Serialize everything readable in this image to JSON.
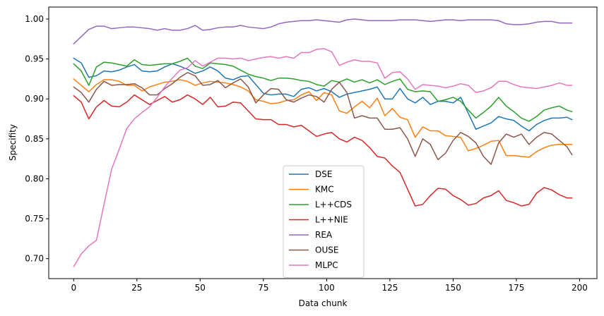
{
  "chart_data": {
    "type": "line",
    "xlabel": "Data chunk",
    "ylabel": "Specifity",
    "xlim": [
      -9.85,
      206.85
    ],
    "ylim": [
      0.675,
      1.015
    ],
    "xticks": [
      0,
      25,
      50,
      75,
      100,
      125,
      150,
      175,
      200
    ],
    "yticks": [
      0.7,
      0.75,
      0.8,
      0.85,
      0.9,
      0.95,
      1.0
    ],
    "ytick_labels": [
      "0.70",
      "0.75",
      "0.80",
      "0.85",
      "0.90",
      "0.95",
      "1.00"
    ],
    "grid": false,
    "legend_position": "lower center",
    "x": [
      0,
      3,
      6,
      9,
      12,
      15,
      18,
      21,
      24,
      27,
      30,
      33,
      36,
      39,
      42,
      45,
      48,
      51,
      54,
      57,
      60,
      63,
      66,
      69,
      72,
      75,
      78,
      81,
      84,
      87,
      90,
      93,
      96,
      99,
      102,
      105,
      108,
      111,
      114,
      117,
      120,
      123,
      126,
      129,
      132,
      135,
      138,
      141,
      144,
      147,
      150,
      153,
      156,
      159,
      162,
      165,
      168,
      171,
      174,
      177,
      180,
      183,
      186,
      189,
      192,
      195,
      197
    ],
    "series": [
      {
        "name": "DSE",
        "color": "#1f77b4",
        "values": [
          0.951,
          0.945,
          0.927,
          0.929,
          0.935,
          0.934,
          0.936,
          0.94,
          0.943,
          0.935,
          0.934,
          0.935,
          0.94,
          0.944,
          0.941,
          0.937,
          0.932,
          0.935,
          0.94,
          0.935,
          0.926,
          0.924,
          0.928,
          0.929,
          0.918,
          0.907,
          0.905,
          0.906,
          0.906,
          0.903,
          0.912,
          0.914,
          0.91,
          0.913,
          0.909,
          0.902,
          0.906,
          0.908,
          0.91,
          0.912,
          0.915,
          0.9,
          0.9,
          0.913,
          0.9,
          0.895,
          0.902,
          0.893,
          0.897,
          0.897,
          0.895,
          0.902,
          0.882,
          0.862,
          0.866,
          0.87,
          0.878,
          0.875,
          0.873,
          0.866,
          0.86,
          0.868,
          0.873,
          0.876,
          0.876,
          0.877,
          0.874
        ]
      },
      {
        "name": "KMC",
        "color": "#ff7f0e",
        "values": [
          0.925,
          0.917,
          0.909,
          0.918,
          0.924,
          0.924,
          0.922,
          0.917,
          0.917,
          0.91,
          0.915,
          0.918,
          0.921,
          0.922,
          0.924,
          0.922,
          0.917,
          0.92,
          0.922,
          0.921,
          0.92,
          0.918,
          0.915,
          0.91,
          0.899,
          0.897,
          0.894,
          0.895,
          0.898,
          0.899,
          0.905,
          0.909,
          0.898,
          0.908,
          0.905,
          0.885,
          0.882,
          0.89,
          0.897,
          0.889,
          0.901,
          0.879,
          0.888,
          0.877,
          0.874,
          0.852,
          0.865,
          0.86,
          0.86,
          0.854,
          0.853,
          0.852,
          0.835,
          0.838,
          0.842,
          0.847,
          0.848,
          0.829,
          0.829,
          0.828,
          0.827,
          0.834,
          0.839,
          0.842,
          0.843,
          0.843,
          0.843
        ]
      },
      {
        "name": "L++CDS",
        "color": "#2ca02c",
        "values": [
          0.944,
          0.935,
          0.917,
          0.94,
          0.946,
          0.945,
          0.943,
          0.941,
          0.949,
          0.943,
          0.942,
          0.943,
          0.944,
          0.944,
          0.947,
          0.951,
          0.941,
          0.938,
          0.945,
          0.944,
          0.943,
          0.941,
          0.936,
          0.931,
          0.928,
          0.926,
          0.923,
          0.926,
          0.926,
          0.925,
          0.923,
          0.922,
          0.918,
          0.916,
          0.923,
          0.921,
          0.925,
          0.921,
          0.924,
          0.92,
          0.924,
          0.918,
          0.922,
          0.925,
          0.912,
          0.909,
          0.91,
          0.909,
          0.897,
          0.899,
          0.902,
          0.897,
          0.886,
          0.876,
          0.883,
          0.891,
          0.902,
          0.891,
          0.884,
          0.876,
          0.872,
          0.878,
          0.886,
          0.889,
          0.891,
          0.886,
          0.884
        ]
      },
      {
        "name": "L++NIE",
        "color": "#d62728",
        "values": [
          0.904,
          0.896,
          0.875,
          0.89,
          0.898,
          0.891,
          0.89,
          0.896,
          0.905,
          0.899,
          0.893,
          0.898,
          0.903,
          0.896,
          0.899,
          0.905,
          0.9,
          0.893,
          0.902,
          0.89,
          0.891,
          0.896,
          0.895,
          0.885,
          0.875,
          0.874,
          0.874,
          0.868,
          0.868,
          0.865,
          0.867,
          0.86,
          0.853,
          0.856,
          0.858,
          0.85,
          0.846,
          0.852,
          0.848,
          0.839,
          0.828,
          0.826,
          0.816,
          0.808,
          0.787,
          0.766,
          0.768,
          0.779,
          0.788,
          0.787,
          0.779,
          0.774,
          0.767,
          0.769,
          0.776,
          0.779,
          0.785,
          0.773,
          0.77,
          0.766,
          0.768,
          0.782,
          0.789,
          0.786,
          0.78,
          0.776,
          0.776
        ]
      },
      {
        "name": "REA",
        "color": "#9467bd",
        "values": [
          0.969,
          0.978,
          0.987,
          0.991,
          0.991,
          0.988,
          0.989,
          0.99,
          0.99,
          0.989,
          0.988,
          0.986,
          0.988,
          0.986,
          0.986,
          0.988,
          0.992,
          0.986,
          0.987,
          0.989,
          0.99,
          0.99,
          0.992,
          0.99,
          0.989,
          0.988,
          0.99,
          0.994,
          0.996,
          0.997,
          0.998,
          0.998,
          0.999,
          0.998,
          0.997,
          0.996,
          0.999,
          1.0,
          0.999,
          0.998,
          0.998,
          0.998,
          0.998,
          0.999,
          0.999,
          0.999,
          0.998,
          0.997,
          0.998,
          0.999,
          0.999,
          0.998,
          0.999,
          0.999,
          0.999,
          0.999,
          0.998,
          0.994,
          0.993,
          0.993,
          0.994,
          0.996,
          0.997,
          0.997,
          0.995,
          0.995,
          0.995
        ]
      },
      {
        "name": "OUSE",
        "color": "#8c564b",
        "values": [
          0.915,
          0.908,
          0.896,
          0.912,
          0.922,
          0.917,
          0.918,
          0.918,
          0.919,
          0.914,
          0.905,
          0.905,
          0.913,
          0.919,
          0.927,
          0.933,
          0.929,
          0.917,
          0.918,
          0.923,
          0.914,
          0.92,
          0.925,
          0.915,
          0.895,
          0.905,
          0.913,
          0.912,
          0.899,
          0.896,
          0.901,
          0.905,
          0.903,
          0.896,
          0.912,
          0.921,
          0.908,
          0.876,
          0.879,
          0.876,
          0.876,
          0.862,
          0.862,
          0.864,
          0.85,
          0.828,
          0.85,
          0.843,
          0.824,
          0.832,
          0.848,
          0.858,
          0.853,
          0.845,
          0.828,
          0.818,
          0.845,
          0.856,
          0.852,
          0.856,
          0.843,
          0.852,
          0.858,
          0.856,
          0.848,
          0.84,
          0.83
        ]
      },
      {
        "name": "MLPC",
        "color": "#e377c2",
        "values": [
          0.69,
          0.706,
          0.716,
          0.723,
          0.768,
          0.812,
          0.837,
          0.863,
          0.875,
          0.883,
          0.89,
          0.902,
          0.915,
          0.926,
          0.936,
          0.939,
          0.948,
          0.941,
          0.946,
          0.951,
          0.951,
          0.95,
          0.951,
          0.948,
          0.95,
          0.952,
          0.953,
          0.951,
          0.953,
          0.951,
          0.958,
          0.958,
          0.962,
          0.963,
          0.959,
          0.942,
          0.946,
          0.949,
          0.947,
          0.947,
          0.945,
          0.926,
          0.933,
          0.934,
          0.925,
          0.912,
          0.918,
          0.917,
          0.916,
          0.914,
          0.916,
          0.919,
          0.917,
          0.908,
          0.91,
          0.914,
          0.922,
          0.922,
          0.918,
          0.915,
          0.914,
          0.913,
          0.915,
          0.917,
          0.92,
          0.917,
          0.917
        ]
      }
    ]
  }
}
